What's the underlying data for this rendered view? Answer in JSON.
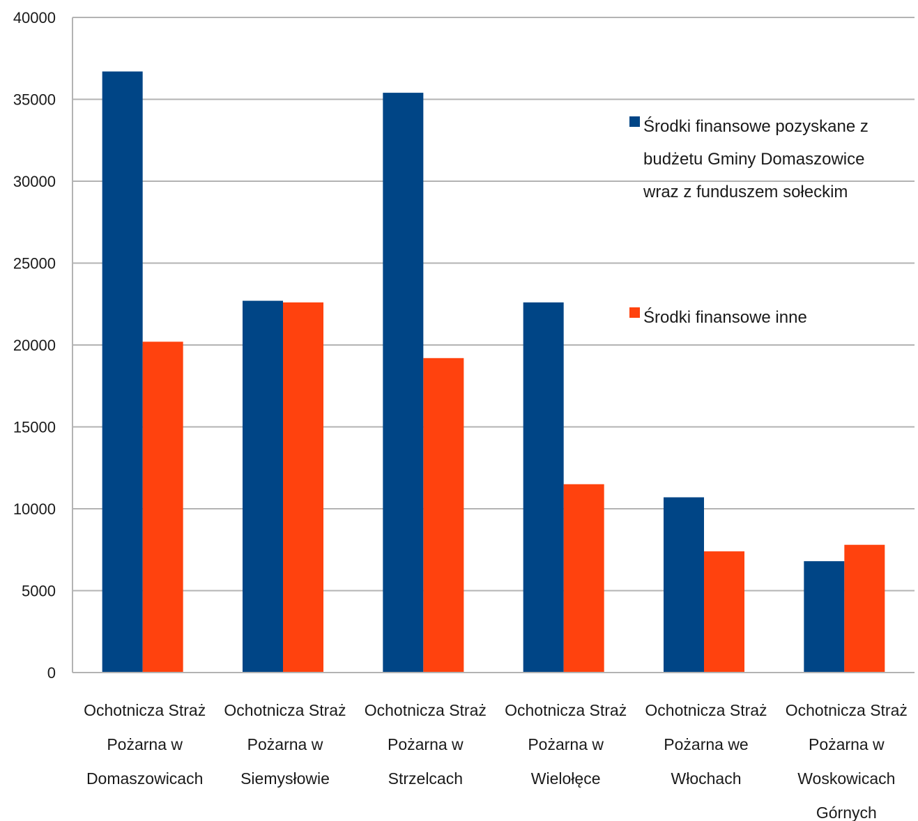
{
  "chart_data": {
    "type": "bar",
    "title": "",
    "xlabel": "",
    "ylabel": "",
    "ylim": [
      0,
      40000
    ],
    "yticks": [
      0,
      5000,
      10000,
      15000,
      20000,
      25000,
      30000,
      35000,
      40000
    ],
    "grid": true,
    "legend_position": "right",
    "categories": [
      [
        "Ochotnicza Straż",
        "Pożarna w",
        "Domaszowicach"
      ],
      [
        "Ochotnicza Straż",
        "Pożarna w",
        "Siemysłowie"
      ],
      [
        "Ochotnicza Straż",
        "Pożarna w",
        "Strzelcach"
      ],
      [
        "Ochotnicza Straż",
        "Pożarna w",
        "Wielołęce"
      ],
      [
        "Ochotnicza Straż",
        "Pożarna we",
        "Włochach"
      ],
      [
        "Ochotnicza Straż",
        "Pożarna w",
        "Woskowicach",
        "Górnych"
      ]
    ],
    "series": [
      {
        "name": [
          "Środki finansowe pozyskane z",
          "budżetu Gminy Domaszowice",
          "wraz z funduszem sołeckim"
        ],
        "color": "#004586",
        "values": [
          36700,
          22700,
          35400,
          22600,
          10700,
          6800
        ]
      },
      {
        "name": [
          "Środki finansowe inne"
        ],
        "color": "#ff420e",
        "values": [
          20200,
          22600,
          19200,
          11500,
          7400,
          7800
        ]
      }
    ]
  }
}
